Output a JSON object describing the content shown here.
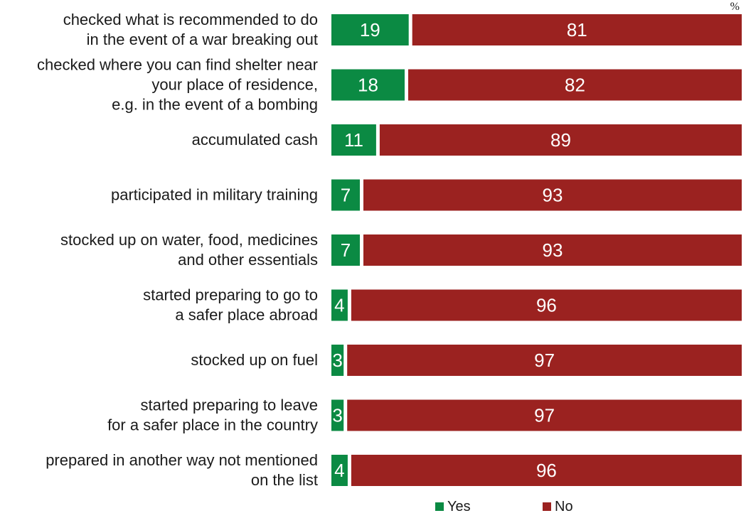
{
  "chart_data": {
    "type": "bar",
    "orientation": "horizontal",
    "stacked": true,
    "unit": "%",
    "categories": [
      [
        "checked what is recommended to do",
        "in the event of a war breaking out"
      ],
      [
        "checked where you can find shelter near",
        "your place of residence,",
        "e.g. in the event of a bombing"
      ],
      [
        "accumulated cash"
      ],
      [
        "participated in military training"
      ],
      [
        "stocked up on water, food, medicines",
        "and other essentials"
      ],
      [
        "started preparing to go to",
        "a safer place abroad"
      ],
      [
        "stocked up on fuel"
      ],
      [
        "started preparing to leave",
        "for a safer place in the country"
      ],
      [
        "prepared in another way not mentioned",
        "on the list"
      ]
    ],
    "series": [
      {
        "name": "Yes",
        "color": "#0b8a43",
        "values": [
          19,
          18,
          11,
          7,
          7,
          4,
          3,
          3,
          4
        ]
      },
      {
        "name": "No",
        "color": "#9b2220",
        "values": [
          81,
          82,
          89,
          93,
          93,
          96,
          97,
          97,
          96
        ]
      }
    ],
    "xlim": [
      0,
      100
    ],
    "grid": false,
    "legend": "bottom"
  }
}
